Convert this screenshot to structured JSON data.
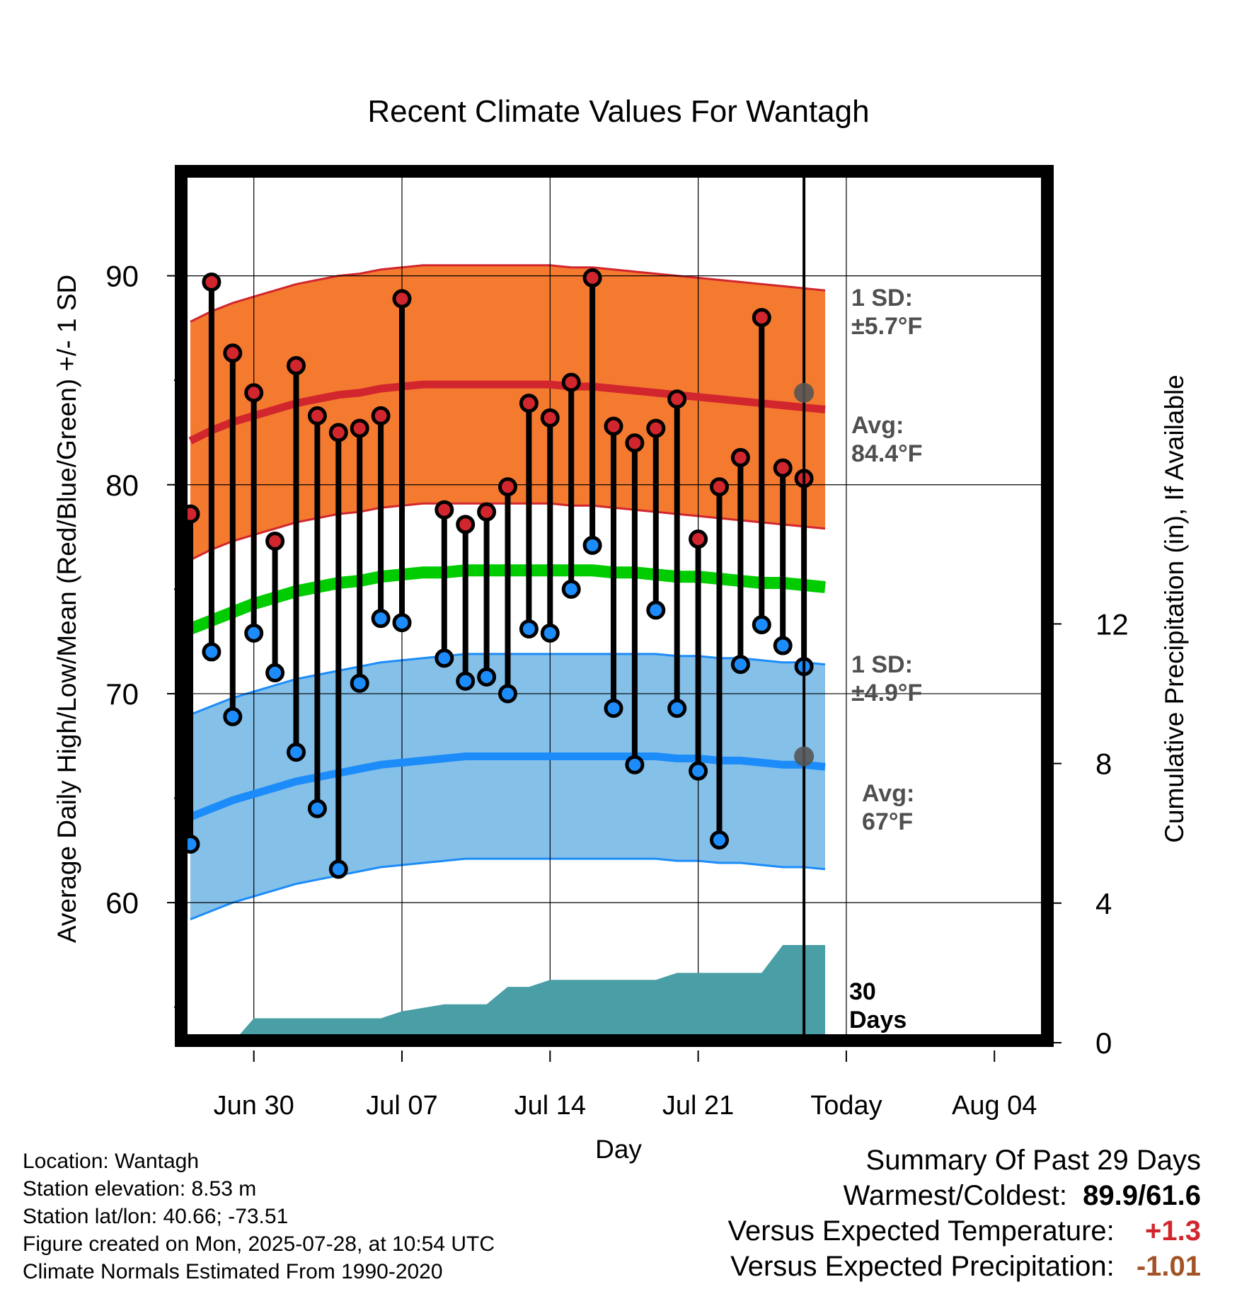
{
  "chart_data": {
    "type": "line",
    "title": "Recent Climate Values For Wantagh",
    "xlabel": "Day",
    "ylabel": "Average Daily High/Low/Mean (Red/Blue/Green) +/- 1 SD",
    "y2label": "Cumulative Precipitation (in), If Available",
    "x_ticks": [
      "Jun 30",
      "Jul 07",
      "Jul 14",
      "Jul 21",
      "Today",
      "Aug 04"
    ],
    "ylim": [
      53.5,
      95
    ],
    "y_ticks": [
      60,
      70,
      80,
      90
    ],
    "y2lim": [
      0,
      30
    ],
    "y2_ticks": [
      0,
      4,
      8,
      12
    ],
    "grid": true,
    "daily_highs": [
      78.6,
      89.7,
      86.3,
      84.4,
      77.3,
      85.7,
      83.3,
      82.5,
      82.7,
      83.3,
      88.9,
      null,
      78.8,
      78.1,
      78.7,
      79.9,
      83.9,
      83.2,
      84.9,
      89.9,
      82.8,
      82.0,
      82.7,
      84.1,
      77.4,
      79.9,
      81.3,
      88.0,
      80.8,
      80.3
    ],
    "daily_lows": [
      62.8,
      72.0,
      68.9,
      72.9,
      71.0,
      67.2,
      64.5,
      61.6,
      70.5,
      73.6,
      73.4,
      null,
      71.7,
      70.6,
      70.8,
      70.0,
      73.1,
      72.9,
      75.0,
      77.1,
      69.3,
      66.6,
      74.0,
      69.3,
      66.3,
      63.0,
      71.4,
      73.3,
      72.3,
      71.3
    ],
    "normal_high": [
      82.1,
      82.6,
      83.0,
      83.3,
      83.6,
      83.9,
      84.1,
      84.3,
      84.4,
      84.6,
      84.7,
      84.8,
      84.8,
      84.8,
      84.8,
      84.8,
      84.8,
      84.8,
      84.7,
      84.7,
      84.6,
      84.5,
      84.4,
      84.3,
      84.2,
      84.1,
      84.0,
      83.9,
      83.8,
      83.7,
      83.6
    ],
    "normal_low": [
      64.1,
      64.5,
      64.9,
      65.2,
      65.5,
      65.8,
      66.0,
      66.2,
      66.4,
      66.6,
      66.7,
      66.8,
      66.9,
      67.0,
      67.0,
      67.0,
      67.0,
      67.0,
      67.0,
      67.0,
      67.0,
      67.0,
      67.0,
      66.9,
      66.9,
      66.8,
      66.8,
      66.7,
      66.6,
      66.6,
      66.5
    ],
    "normal_mean": [
      73.1,
      73.5,
      73.9,
      74.3,
      74.6,
      74.9,
      75.1,
      75.3,
      75.4,
      75.6,
      75.7,
      75.8,
      75.8,
      75.9,
      75.9,
      75.9,
      75.9,
      75.9,
      75.9,
      75.9,
      75.8,
      75.8,
      75.7,
      75.6,
      75.6,
      75.5,
      75.4,
      75.3,
      75.3,
      75.2,
      75.1
    ],
    "high_sd": 5.7,
    "low_sd": 4.9,
    "cumulative_precip": [
      0,
      0,
      0,
      0.7,
      0.7,
      0.7,
      0.7,
      0.7,
      0.7,
      0.7,
      0.9,
      1.0,
      1.1,
      1.1,
      1.1,
      1.6,
      1.6,
      1.8,
      1.8,
      1.8,
      1.8,
      1.8,
      1.8,
      2.0,
      2.0,
      2.0,
      2.0,
      2.0,
      2.8,
      2.8,
      2.8
    ],
    "annotations": {
      "high_sd_label": [
        "1 SD:",
        "±5.7°F"
      ],
      "high_avg_label": [
        "Avg:",
        "84.4°F"
      ],
      "low_sd_label": [
        "1 SD:",
        "±4.9°F"
      ],
      "low_avg_label": [
        "Avg:",
        "67°F"
      ],
      "precip_label": [
        "30",
        "Days"
      ]
    },
    "today_normal_high": 84.4,
    "today_normal_low": 67,
    "colors": {
      "high_band": "#f47a30",
      "high_line": "#d1262d",
      "low_band": "#85c0e8",
      "low_line": "#1c8cfa",
      "mean_line": "#00cc00",
      "precip": "#4a9ea6",
      "annotation_text": "#4f4f4f"
    }
  },
  "footer": {
    "location": "Location: Wantagh",
    "elevation": "Station elevation: 8.53 m",
    "latlon": "Station lat/lon: 40.66; -73.51",
    "created": "Figure created on Mon, 2025-07-28, at 10:54 UTC",
    "normals": "Climate Normals Estimated From 1990-2020"
  },
  "summary": {
    "title": "Summary Of Past 29 Days",
    "warmest_coldest_label": "Warmest/Coldest:",
    "warmest_coldest_value": "89.9/61.6",
    "temp_label": "Versus Expected Temperature:",
    "temp_value": "+1.3",
    "precip_label": "Versus Expected Precipitation:",
    "precip_value": "-1.01"
  }
}
